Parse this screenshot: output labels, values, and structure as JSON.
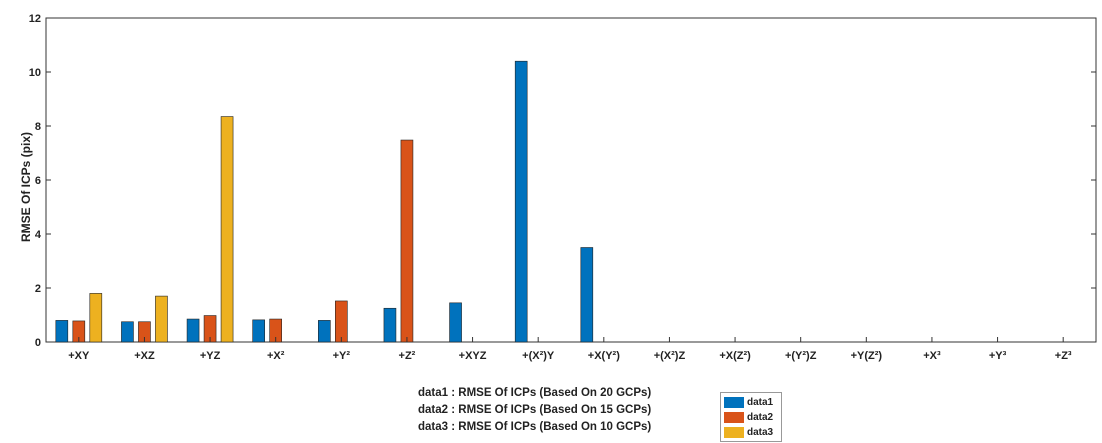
{
  "chart_data": {
    "type": "bar",
    "ylabel": "RMSE Of ICPs (pix)",
    "ylim": [
      0,
      12
    ],
    "yticks": [
      0,
      2,
      4,
      6,
      8,
      10,
      12
    ],
    "grid": false,
    "categories": [
      "+XY",
      "+XZ",
      "+YZ",
      "+X²",
      "+Y²",
      "+Z²",
      "+XYZ",
      "+(X²)Y",
      "+X(Y²)",
      "+(X²)Z",
      "+X(Z²)",
      "+(Y²)Z",
      "+Y(Z²)",
      "+X³",
      "+Y³",
      "+Z³"
    ],
    "series": [
      {
        "name": "data1",
        "color": "#0072BD",
        "values": [
          0.8,
          0.75,
          0.85,
          0.82,
          0.8,
          1.25,
          1.45,
          10.4,
          3.5,
          0,
          0,
          0,
          0,
          0,
          0,
          0
        ]
      },
      {
        "name": "data2",
        "color": "#D95319",
        "values": [
          0.78,
          0.75,
          0.98,
          0.85,
          1.52,
          7.48,
          0,
          0,
          0,
          0,
          0,
          0,
          0,
          0,
          0,
          0
        ]
      },
      {
        "name": "data3",
        "color": "#EDB120",
        "values": [
          1.8,
          1.7,
          8.35,
          0,
          0,
          0,
          0,
          0,
          0,
          0,
          0,
          0,
          0,
          0,
          0,
          0
        ]
      }
    ],
    "legend_placement": "bottom-center"
  },
  "notes": [
    "data1 : RMSE Of ICPs (Based On 20 GCPs)",
    "data2 : RMSE Of ICPs (Based On 15 GCPs)",
    "data3 : RMSE Of ICPs (Based On 10 GCPs)"
  ]
}
